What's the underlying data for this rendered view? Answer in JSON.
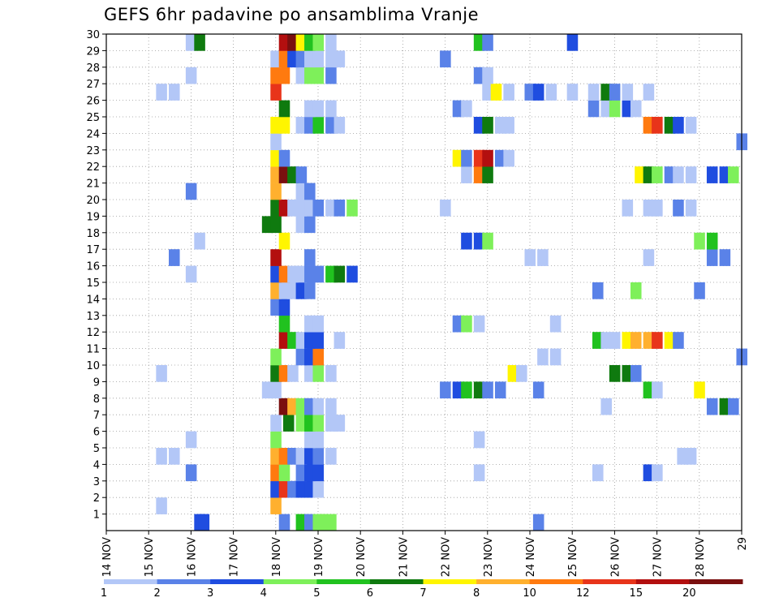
{
  "chart_data": {
    "type": "heatmap",
    "title": "GEFS 6hr padavine po ansamblima Vranje",
    "x_ticks": [
      "14 NOV",
      "15 NOV",
      "16 NOV",
      "17 NOV",
      "18 NOV",
      "19 NOV",
      "20 NOV",
      "21 NOV",
      "22 NOV",
      "23 NOV",
      "24 NOV",
      "25 NOV",
      "26 NOV",
      "27 NOV",
      "28 NOV",
      "29"
    ],
    "y_ticks": [
      "1",
      "2",
      "3",
      "4",
      "5",
      "6",
      "7",
      "8",
      "9",
      "10",
      "11",
      "12",
      "13",
      "14",
      "15",
      "16",
      "17",
      "18",
      "19",
      "20",
      "21",
      "22",
      "23",
      "24",
      "25",
      "26",
      "27",
      "28",
      "29",
      "30"
    ],
    "xlim": [
      0,
      15
    ],
    "ylim": [
      0,
      30
    ],
    "grid": true,
    "colorbar": {
      "labels": [
        "1",
        "2",
        "3",
        "4",
        "5",
        "6",
        "7",
        "8",
        "10",
        "12",
        "15",
        "20"
      ],
      "colors": [
        "#b3c7f7",
        "#5a82e8",
        "#1f4de0",
        "#7ef05a",
        "#21c21f",
        "#0f7a0f",
        "#fff500",
        "#ffb02e",
        "#ff7a0f",
        "#e8341a",
        "#b30f0f",
        "#7a0f0f"
      ]
    },
    "cells": [
      [
        16.2,
        0,
        2
      ],
      [
        16.3,
        0,
        2
      ],
      [
        18.2,
        0,
        1
      ],
      [
        18.6,
        0,
        4
      ],
      [
        18.8,
        0,
        1
      ],
      [
        19.0,
        0,
        3
      ],
      [
        19.1,
        0,
        3
      ],
      [
        19.3,
        0,
        3
      ],
      [
        24.2,
        0,
        1
      ],
      [
        15.3,
        1,
        0
      ],
      [
        18.0,
        1,
        7
      ],
      [
        18.0,
        2,
        2
      ],
      [
        18.2,
        2,
        9
      ],
      [
        18.4,
        2,
        1
      ],
      [
        18.6,
        2,
        2
      ],
      [
        18.8,
        2,
        2
      ],
      [
        19.0,
        2,
        0
      ],
      [
        18.0,
        3,
        8
      ],
      [
        18.2,
        3,
        3
      ],
      [
        18.6,
        3,
        1
      ],
      [
        18.8,
        3,
        2
      ],
      [
        19.0,
        3,
        2
      ],
      [
        16.0,
        3,
        1
      ],
      [
        22.8,
        3,
        0
      ],
      [
        25.6,
        3,
        0
      ],
      [
        26.8,
        3,
        2
      ],
      [
        27.0,
        3,
        0
      ],
      [
        15.3,
        4,
        0
      ],
      [
        15.6,
        4,
        0
      ],
      [
        18.0,
        4,
        7
      ],
      [
        18.2,
        4,
        8
      ],
      [
        18.4,
        4,
        1
      ],
      [
        18.6,
        4,
        0
      ],
      [
        18.8,
        4,
        2
      ],
      [
        19.0,
        4,
        1
      ],
      [
        19.3,
        4,
        0
      ],
      [
        27.6,
        4,
        0
      ],
      [
        27.8,
        4,
        0
      ],
      [
        16.0,
        5,
        0
      ],
      [
        18.0,
        5,
        3
      ],
      [
        18.8,
        5,
        0
      ],
      [
        19.0,
        5,
        0
      ],
      [
        22.8,
        5,
        0
      ],
      [
        18.0,
        6,
        0
      ],
      [
        18.3,
        6,
        5
      ],
      [
        18.6,
        6,
        3
      ],
      [
        18.8,
        6,
        4
      ],
      [
        19.0,
        6,
        3
      ],
      [
        19.3,
        6,
        0
      ],
      [
        19.5,
        6,
        0
      ],
      [
        18.2,
        7,
        11
      ],
      [
        18.4,
        7,
        7
      ],
      [
        18.6,
        7,
        3
      ],
      [
        18.8,
        7,
        1
      ],
      [
        19.0,
        7,
        0
      ],
      [
        19.3,
        7,
        0
      ],
      [
        25.8,
        7,
        0
      ],
      [
        28.3,
        7,
        1
      ],
      [
        28.6,
        7,
        5
      ],
      [
        28.8,
        7,
        1
      ],
      [
        17.8,
        8,
        0
      ],
      [
        18.0,
        8,
        0
      ],
      [
        22.0,
        8,
        1
      ],
      [
        22.3,
        8,
        2
      ],
      [
        22.5,
        8,
        4
      ],
      [
        22.8,
        8,
        5
      ],
      [
        23.0,
        8,
        1
      ],
      [
        23.3,
        8,
        1
      ],
      [
        24.2,
        8,
        1
      ],
      [
        26.8,
        8,
        4
      ],
      [
        27.0,
        8,
        0
      ],
      [
        28.0,
        8,
        6
      ],
      [
        15.3,
        9,
        0
      ],
      [
        18.0,
        9,
        5
      ],
      [
        18.2,
        9,
        8
      ],
      [
        18.4,
        9,
        0
      ],
      [
        18.8,
        9,
        0
      ],
      [
        19.0,
        9,
        3
      ],
      [
        19.3,
        9,
        0
      ],
      [
        23.6,
        9,
        6
      ],
      [
        23.8,
        9,
        0
      ],
      [
        26.0,
        9,
        5
      ],
      [
        26.3,
        9,
        5
      ],
      [
        26.5,
        9,
        1
      ],
      [
        18.0,
        10,
        3
      ],
      [
        18.6,
        10,
        1
      ],
      [
        18.8,
        10,
        2
      ],
      [
        19.0,
        10,
        8
      ],
      [
        24.3,
        10,
        0
      ],
      [
        24.6,
        10,
        0
      ],
      [
        29.0,
        10,
        1
      ],
      [
        18.2,
        11,
        10
      ],
      [
        18.4,
        11,
        4
      ],
      [
        18.6,
        11,
        0
      ],
      [
        18.8,
        11,
        2
      ],
      [
        19.0,
        11,
        2
      ],
      [
        19.5,
        11,
        0
      ],
      [
        25.6,
        11,
        4
      ],
      [
        25.8,
        11,
        0
      ],
      [
        26.0,
        11,
        0
      ],
      [
        26.3,
        11,
        6
      ],
      [
        26.5,
        11,
        7
      ],
      [
        26.8,
        11,
        7
      ],
      [
        27.0,
        11,
        9
      ],
      [
        27.3,
        11,
        6
      ],
      [
        27.5,
        11,
        1
      ],
      [
        18.2,
        12,
        4
      ],
      [
        18.8,
        12,
        0
      ],
      [
        19.0,
        12,
        0
      ],
      [
        22.3,
        12,
        1
      ],
      [
        22.5,
        12,
        3
      ],
      [
        22.8,
        12,
        0
      ],
      [
        24.6,
        12,
        0
      ],
      [
        18.0,
        13,
        1
      ],
      [
        18.2,
        13,
        2
      ],
      [
        18.0,
        14,
        7
      ],
      [
        18.2,
        14,
        0
      ],
      [
        18.4,
        14,
        0
      ],
      [
        18.6,
        14,
        2
      ],
      [
        18.8,
        14,
        1
      ],
      [
        25.6,
        14,
        1
      ],
      [
        26.5,
        14,
        3
      ],
      [
        28.0,
        14,
        1
      ],
      [
        18.0,
        15,
        2
      ],
      [
        18.2,
        15,
        8
      ],
      [
        18.4,
        15,
        0
      ],
      [
        18.6,
        15,
        0
      ],
      [
        18.8,
        15,
        1
      ],
      [
        19.0,
        15,
        1
      ],
      [
        19.3,
        15,
        4
      ],
      [
        19.5,
        15,
        5
      ],
      [
        19.8,
        15,
        2
      ],
      [
        16.0,
        15,
        0
      ],
      [
        15.6,
        16,
        1
      ],
      [
        18.0,
        16,
        10
      ],
      [
        18.8,
        16,
        1
      ],
      [
        24.0,
        16,
        0
      ],
      [
        24.3,
        16,
        0
      ],
      [
        26.8,
        16,
        0
      ],
      [
        28.3,
        16,
        1
      ],
      [
        28.6,
        16,
        1
      ],
      [
        16.2,
        17,
        0
      ],
      [
        18.2,
        17,
        6
      ],
      [
        22.5,
        17,
        2
      ],
      [
        22.8,
        17,
        2
      ],
      [
        23.0,
        17,
        3
      ],
      [
        28.0,
        17,
        3
      ],
      [
        28.3,
        17,
        4
      ],
      [
        17.8,
        18,
        5
      ],
      [
        18.0,
        18,
        5
      ],
      [
        18.6,
        18,
        0
      ],
      [
        18.8,
        18,
        1
      ],
      [
        18.0,
        19,
        5
      ],
      [
        18.2,
        19,
        10
      ],
      [
        18.4,
        19,
        0
      ],
      [
        18.6,
        19,
        0
      ],
      [
        18.8,
        19,
        0
      ],
      [
        19.0,
        19,
        1
      ],
      [
        19.3,
        19,
        0
      ],
      [
        19.5,
        19,
        1
      ],
      [
        19.8,
        19,
        3
      ],
      [
        22.0,
        19,
        0
      ],
      [
        26.3,
        19,
        0
      ],
      [
        26.8,
        19,
        0
      ],
      [
        27.0,
        19,
        0
      ],
      [
        27.5,
        19,
        1
      ],
      [
        27.8,
        19,
        0
      ],
      [
        16.0,
        20,
        1
      ],
      [
        18.0,
        20,
        7
      ],
      [
        18.6,
        20,
        0
      ],
      [
        18.8,
        20,
        1
      ],
      [
        18.0,
        21,
        7
      ],
      [
        18.2,
        21,
        11
      ],
      [
        18.4,
        21,
        5
      ],
      [
        18.6,
        21,
        1
      ],
      [
        22.5,
        21,
        0
      ],
      [
        22.8,
        21,
        8
      ],
      [
        23.0,
        21,
        5
      ],
      [
        26.6,
        21,
        6
      ],
      [
        26.8,
        21,
        5
      ],
      [
        27.0,
        21,
        3
      ],
      [
        27.3,
        21,
        1
      ],
      [
        27.5,
        21,
        0
      ],
      [
        27.8,
        21,
        0
      ],
      [
        28.3,
        21,
        2
      ],
      [
        28.6,
        21,
        2
      ],
      [
        28.8,
        21,
        3
      ],
      [
        18.0,
        22,
        6
      ],
      [
        18.2,
        22,
        1
      ],
      [
        22.3,
        22,
        6
      ],
      [
        22.5,
        22,
        1
      ],
      [
        22.8,
        22,
        9
      ],
      [
        23.0,
        22,
        10
      ],
      [
        23.3,
        22,
        1
      ],
      [
        23.5,
        22,
        0
      ],
      [
        18.0,
        23,
        0
      ],
      [
        29.0,
        23,
        1
      ],
      [
        18.0,
        24,
        6
      ],
      [
        18.2,
        24,
        6
      ],
      [
        18.6,
        24,
        0
      ],
      [
        18.8,
        24,
        1
      ],
      [
        19.0,
        24,
        4
      ],
      [
        19.3,
        24,
        1
      ],
      [
        19.5,
        24,
        0
      ],
      [
        22.8,
        24,
        2
      ],
      [
        23.0,
        24,
        5
      ],
      [
        23.3,
        24,
        0
      ],
      [
        23.5,
        24,
        0
      ],
      [
        26.8,
        24,
        8
      ],
      [
        27.0,
        24,
        9
      ],
      [
        27.3,
        24,
        5
      ],
      [
        27.5,
        24,
        2
      ],
      [
        27.8,
        24,
        0
      ],
      [
        18.2,
        25,
        5
      ],
      [
        18.8,
        25,
        0
      ],
      [
        19.0,
        25,
        0
      ],
      [
        19.3,
        25,
        0
      ],
      [
        22.3,
        25,
        1
      ],
      [
        22.5,
        25,
        0
      ],
      [
        25.5,
        25,
        1
      ],
      [
        25.8,
        25,
        0
      ],
      [
        26.0,
        25,
        3
      ],
      [
        26.3,
        25,
        2
      ],
      [
        26.5,
        25,
        0
      ],
      [
        15.3,
        26,
        0
      ],
      [
        15.6,
        26,
        0
      ],
      [
        18.0,
        26,
        9
      ],
      [
        23.0,
        26,
        0
      ],
      [
        23.2,
        26,
        6
      ],
      [
        23.5,
        26,
        0
      ],
      [
        24.0,
        26,
        1
      ],
      [
        24.2,
        26,
        2
      ],
      [
        24.5,
        26,
        0
      ],
      [
        25.0,
        26,
        0
      ],
      [
        25.5,
        26,
        0
      ],
      [
        25.8,
        26,
        5
      ],
      [
        26.0,
        26,
        1
      ],
      [
        26.3,
        26,
        0
      ],
      [
        26.8,
        26,
        0
      ],
      [
        16.0,
        27,
        0
      ],
      [
        18.0,
        27,
        8
      ],
      [
        18.2,
        27,
        8
      ],
      [
        18.6,
        27,
        0
      ],
      [
        18.8,
        27,
        3
      ],
      [
        19.0,
        27,
        3
      ],
      [
        19.3,
        27,
        1
      ],
      [
        22.8,
        27,
        1
      ],
      [
        23.0,
        27,
        0
      ],
      [
        18.0,
        28,
        0
      ],
      [
        18.2,
        28,
        8
      ],
      [
        18.4,
        28,
        2
      ],
      [
        18.6,
        28,
        1
      ],
      [
        18.8,
        28,
        0
      ],
      [
        19.0,
        28,
        0
      ],
      [
        19.3,
        28,
        0
      ],
      [
        19.5,
        28,
        0
      ],
      [
        22.0,
        28,
        1
      ],
      [
        16.0,
        29,
        0
      ],
      [
        16.2,
        29,
        5
      ],
      [
        18.2,
        29,
        10
      ],
      [
        18.4,
        29,
        11
      ],
      [
        18.6,
        29,
        6
      ],
      [
        18.8,
        29,
        4
      ],
      [
        19.0,
        29,
        3
      ],
      [
        19.3,
        29,
        0
      ],
      [
        22.8,
        29,
        4
      ],
      [
        23.0,
        29,
        1
      ],
      [
        25.0,
        29,
        2
      ]
    ]
  }
}
